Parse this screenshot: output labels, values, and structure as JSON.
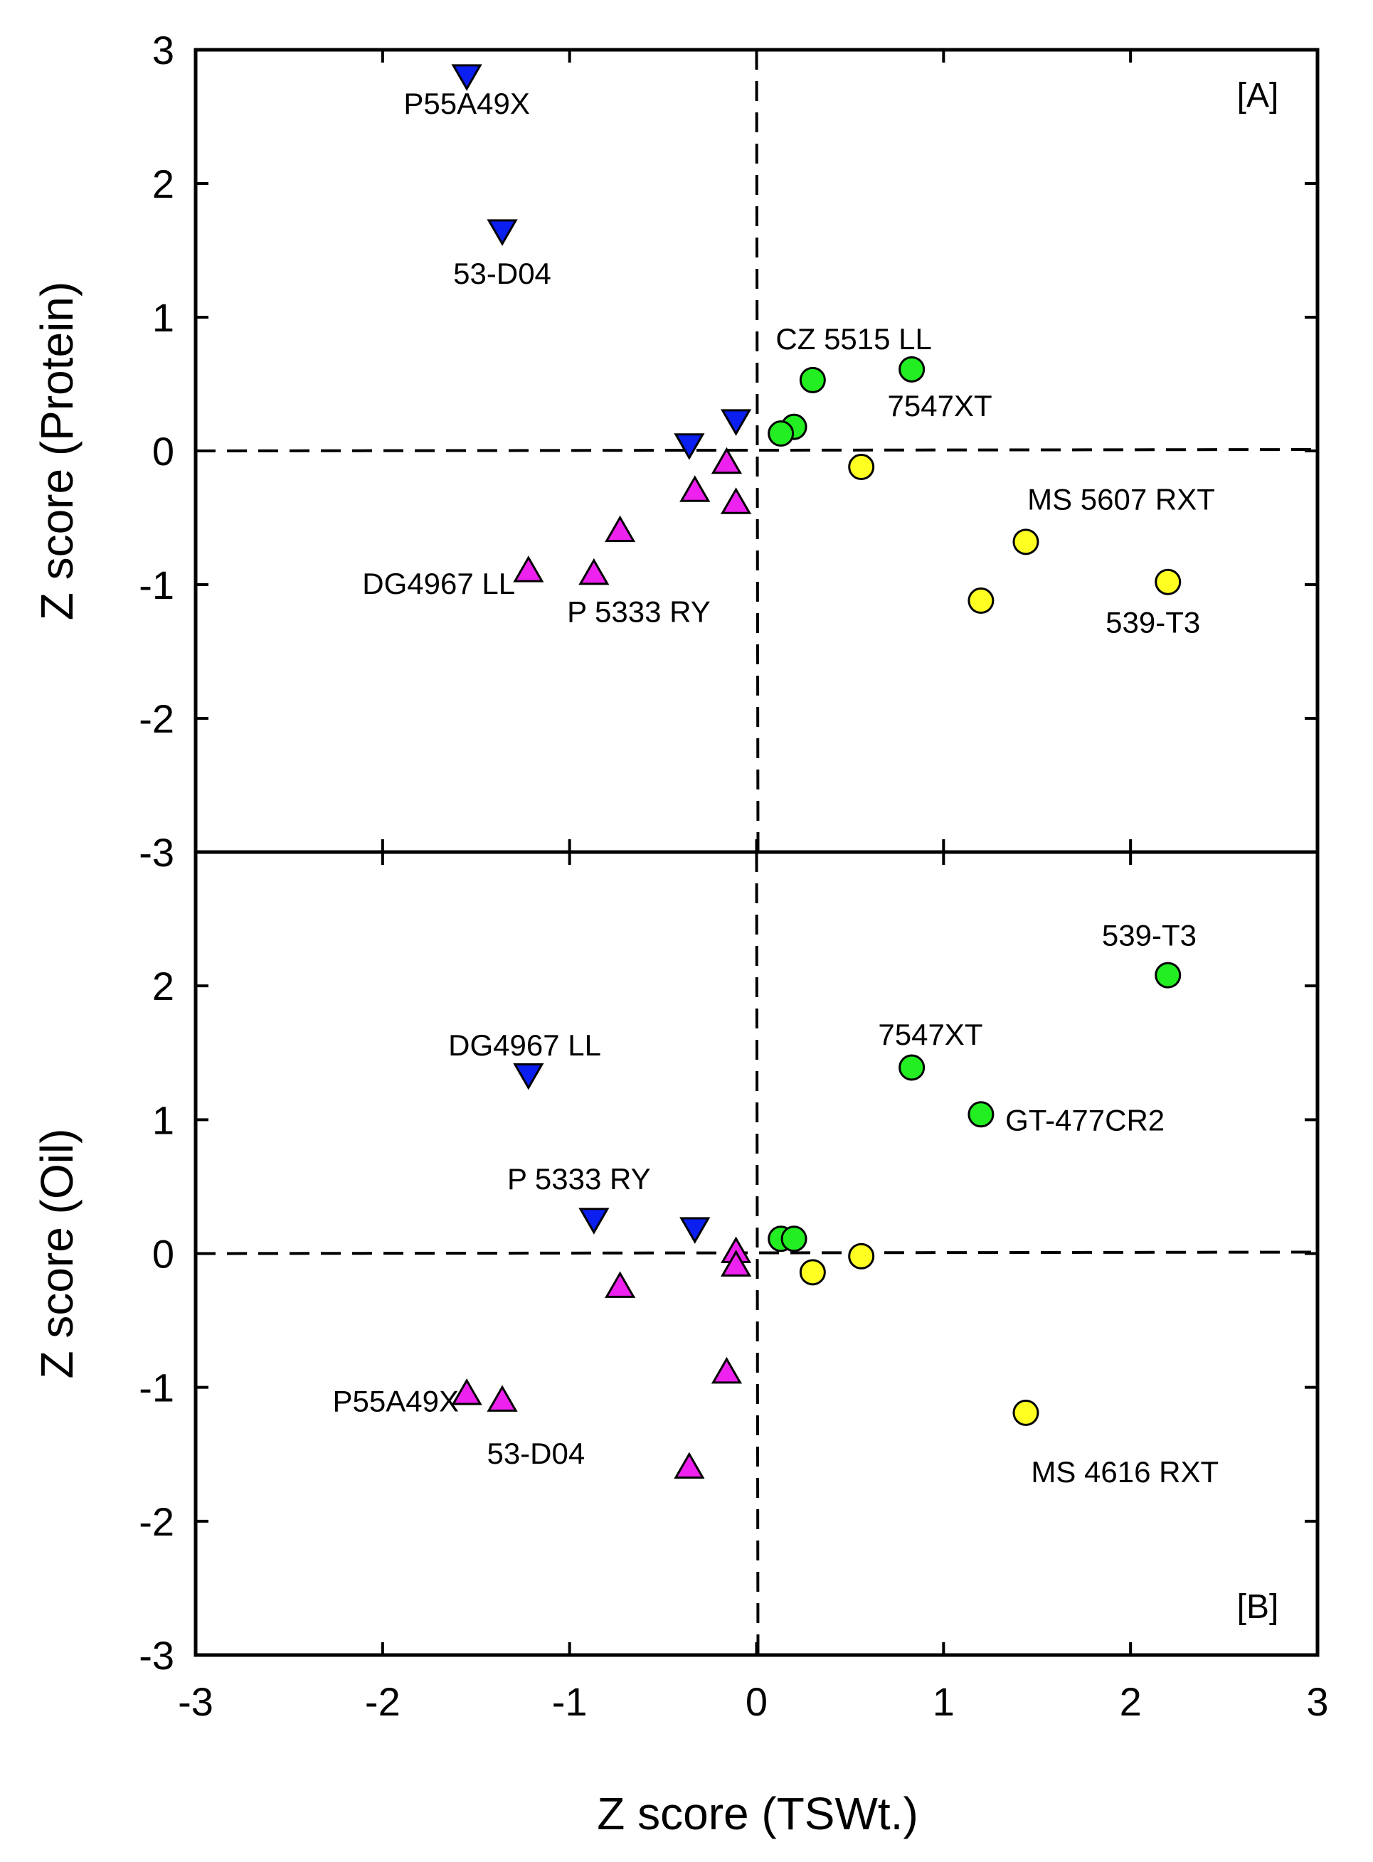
{
  "chart_data": {
    "type": "scatter",
    "xlabel": "Z score (TSWt.)",
    "xlim": [
      -3,
      3
    ],
    "xticks": [
      "-3",
      "-2",
      "-1",
      "0",
      "1",
      "2",
      "3"
    ],
    "panels": [
      {
        "id": "A",
        "tag": "[A]",
        "ylabel": "Z score (Protein)",
        "ylim": [
          -3,
          3
        ],
        "yticks": [
          "-3",
          "-2",
          "-1",
          "0",
          "1",
          "2",
          "3"
        ],
        "series": [
          {
            "name": "blue-down-triangle",
            "marker": "triangle-down",
            "color": "#0a1ff0",
            "points": [
              [
                -1.55,
                2.82
              ],
              [
                -1.36,
                1.66
              ],
              [
                -0.36,
                0.06
              ],
              [
                -0.11,
                0.24
              ]
            ]
          },
          {
            "name": "magenta-up-triangle",
            "marker": "triangle-up",
            "color": "#ee22ee",
            "points": [
              [
                -0.16,
                -0.1
              ],
              [
                -0.33,
                -0.31
              ],
              [
                -0.11,
                -0.4
              ],
              [
                -0.73,
                -0.61
              ],
              [
                -1.22,
                -0.91
              ],
              [
                -0.87,
                -0.93
              ]
            ]
          },
          {
            "name": "green-circle",
            "marker": "circle",
            "color": "#22ee22",
            "points": [
              [
                0.3,
                0.53
              ],
              [
                0.83,
                0.61
              ],
              [
                0.2,
                0.18
              ],
              [
                0.13,
                0.13
              ]
            ]
          },
          {
            "name": "yellow-circle",
            "marker": "circle",
            "color": "#ffff22",
            "points": [
              [
                0.56,
                -0.12
              ],
              [
                1.44,
                -0.68
              ],
              [
                2.2,
                -0.98
              ],
              [
                1.2,
                -1.12
              ]
            ]
          }
        ],
        "annotations": [
          {
            "text": "P55A49X",
            "x": -1.55,
            "y": 2.6
          },
          {
            "text": "53-D04",
            "x": -1.36,
            "y": 1.33
          },
          {
            "text": "CZ 5515 LL",
            "x": 0.52,
            "y": 0.84
          },
          {
            "text": "7547XT",
            "x": 0.98,
            "y": 0.34
          },
          {
            "text": "MS 5607 RXT",
            "x": 1.95,
            "y": -0.36
          },
          {
            "text": "DG4967 LL",
            "x": -1.7,
            "y": -0.99
          },
          {
            "text": "P 5333 RY",
            "x": -0.63,
            "y": -1.2
          },
          {
            "text": "539-T3",
            "x": 2.12,
            "y": -1.28
          }
        ]
      },
      {
        "id": "B",
        "tag": "[B]",
        "ylabel": "Z score (Oil)",
        "ylim": [
          -3,
          3
        ],
        "yticks": [
          "-3",
          "-2",
          "-1",
          "0",
          "1",
          "2",
          "3"
        ],
        "series": [
          {
            "name": "blue-down-triangle",
            "marker": "triangle-down",
            "color": "#0a1ff0",
            "points": [
              [
                -1.22,
                1.35
              ],
              [
                -0.87,
                0.27
              ],
              [
                -0.33,
                0.2
              ]
            ]
          },
          {
            "name": "magenta-up-triangle",
            "marker": "triangle-up",
            "color": "#ee22ee",
            "points": [
              [
                -0.11,
                0.0
              ],
              [
                -0.11,
                -0.1
              ],
              [
                -0.73,
                -0.26
              ],
              [
                -0.16,
                -0.9
              ],
              [
                -1.55,
                -1.06
              ],
              [
                -1.36,
                -1.11
              ],
              [
                -0.36,
                -1.61
              ]
            ]
          },
          {
            "name": "green-circle",
            "marker": "circle",
            "color": "#22ee22",
            "points": [
              [
                2.2,
                2.08
              ],
              [
                0.83,
                1.39
              ],
              [
                1.2,
                1.04
              ],
              [
                0.13,
                0.11
              ],
              [
                0.2,
                0.11
              ]
            ]
          },
          {
            "name": "yellow-circle",
            "marker": "circle",
            "color": "#ffff22",
            "points": [
              [
                0.56,
                -0.02
              ],
              [
                0.3,
                -0.14
              ],
              [
                1.44,
                -1.19
              ]
            ]
          }
        ],
        "annotations": [
          {
            "text": "539-T3",
            "x": 2.1,
            "y": 2.38
          },
          {
            "text": "7547XT",
            "x": 0.93,
            "y": 1.64
          },
          {
            "text": "DG4967 LL",
            "x": -1.24,
            "y": 1.56
          },
          {
            "text": "GT-477CR2",
            "x": 1.7,
            "y": 1.0,
            "align": "start",
            "xstart": 1.33
          },
          {
            "text": "P 5333 RY",
            "x": -0.95,
            "y": 0.56
          },
          {
            "text": "P55A49X",
            "x": -1.93,
            "y": -1.1
          },
          {
            "text": "53-D04",
            "x": -1.18,
            "y": -1.49
          },
          {
            "text": "MS 4616 RXT",
            "x": 1.97,
            "y": -1.63
          }
        ]
      }
    ]
  }
}
